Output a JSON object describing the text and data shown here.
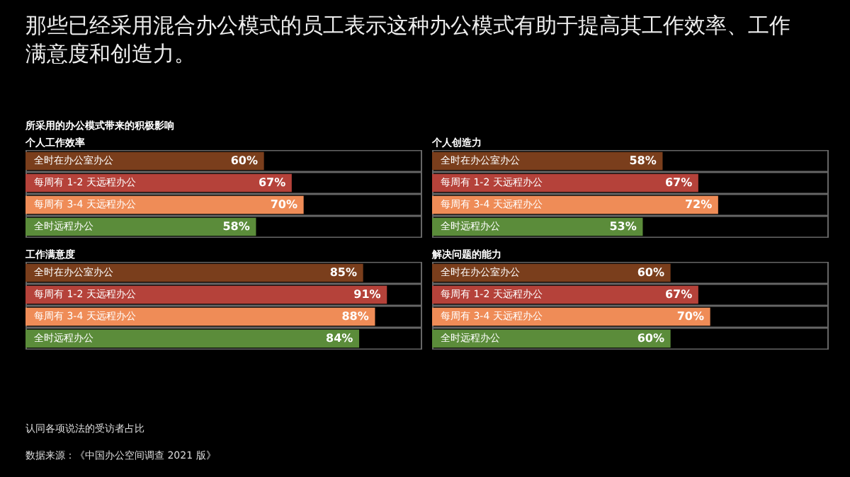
{
  "chart_data": [
    {
      "type": "other",
      "title": "那些已经采用混合办公模式的员工表示这种办公模式有助于提高其工作效率、工作满意度和创造力。",
      "subtitle": "所采用的办公模式带来的积极影响",
      "annotations": [
        "认同各项说法的受访者占比",
        "数据来源：《中国办公空间调查 2021 版》"
      ]
    },
    {
      "type": "bar",
      "orientation": "horizontal",
      "title": "个人工作效率",
      "categories": [
        "全时在办公室办公",
        "每周有 1-2 天远程办公",
        "每周有 3-4 天远程办公",
        "全时远程办公"
      ],
      "values": [
        60,
        67,
        70,
        58
      ],
      "value_labels": [
        "60%",
        "67%",
        "70%",
        "58%"
      ],
      "colors": [
        "#7a3e1c",
        "#b5423a",
        "#ef8c57",
        "#5b8c3a"
      ],
      "xlim": [
        0,
        100
      ],
      "tick_labels": false
    },
    {
      "type": "bar",
      "orientation": "horizontal",
      "title": "个人创造力",
      "categories": [
        "全时在办公室办公",
        "每周有 1-2 天远程办公",
        "每周有 3-4 天远程办公",
        "全时远程办公"
      ],
      "values": [
        58,
        67,
        72,
        53
      ],
      "value_labels": [
        "58%",
        "67%",
        "72%",
        "53%"
      ],
      "colors": [
        "#7a3e1c",
        "#b5423a",
        "#ef8c57",
        "#5b8c3a"
      ],
      "xlim": [
        0,
        100
      ],
      "tick_labels": false
    },
    {
      "type": "bar",
      "orientation": "horizontal",
      "title": "工作满意度",
      "categories": [
        "全时在办公室办公",
        "每周有 1-2 天远程办公",
        "每周有 3-4 天远程办公",
        "全时远程办公"
      ],
      "values": [
        85,
        91,
        88,
        84
      ],
      "value_labels": [
        "85%",
        "91%",
        "88%",
        "84%"
      ],
      "colors": [
        "#7a3e1c",
        "#b5423a",
        "#ef8c57",
        "#5b8c3a"
      ],
      "xlim": [
        0,
        100
      ],
      "tick_labels": false
    },
    {
      "type": "bar",
      "orientation": "horizontal",
      "title": "解决问题的能力",
      "categories": [
        "全时在办公室办公",
        "每周有 1-2 天远程办公",
        "每周有 3-4 天远程办公",
        "全时远程办公"
      ],
      "values": [
        60,
        67,
        70,
        60
      ],
      "value_labels": [
        "60%",
        "67%",
        "70%",
        "60%"
      ],
      "colors": [
        "#7a3e1c",
        "#b5423a",
        "#ef8c57",
        "#5b8c3a"
      ],
      "xlim": [
        0,
        100
      ],
      "tick_labels": false
    }
  ]
}
